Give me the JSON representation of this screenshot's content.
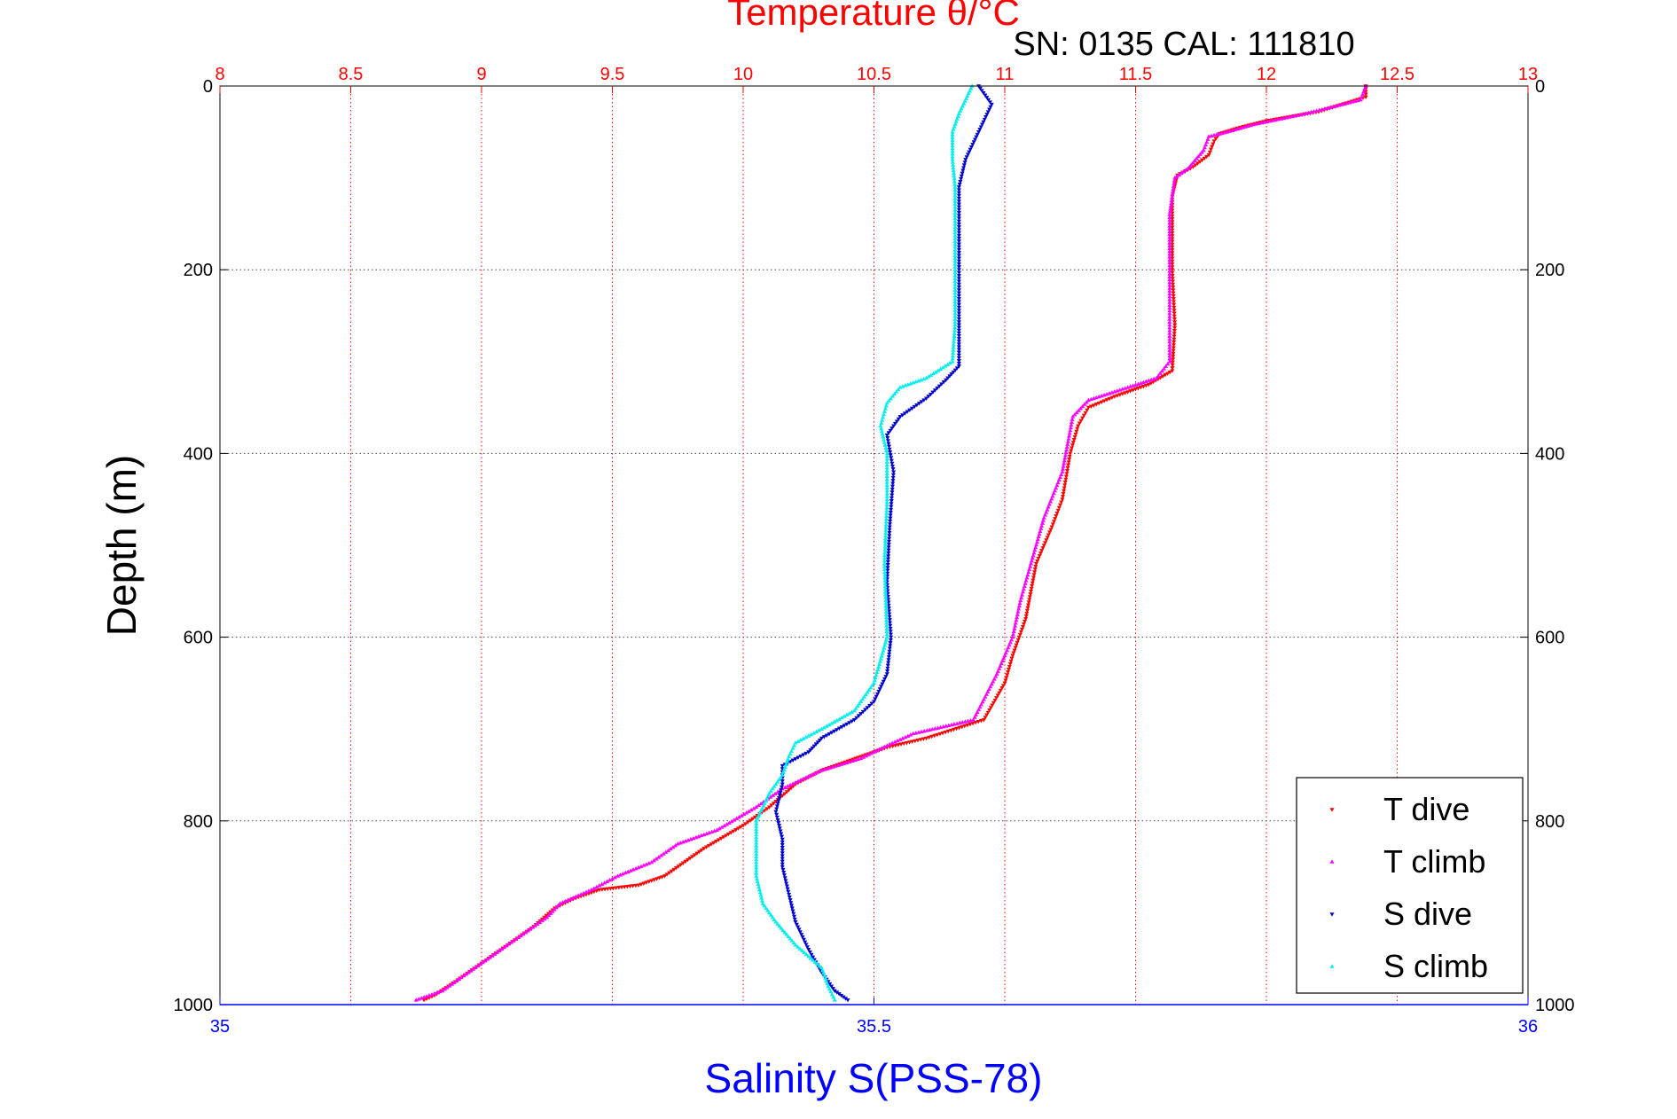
{
  "chart_data": {
    "type": "scatter",
    "title": "Temperature θ/°C",
    "subtitle": "SN: 0135  CAL: 111810",
    "ylabel": "Depth (m)",
    "xlabel_bottom": "Salinity S(PSS-78)",
    "y_axis": {
      "reversed": true,
      "range": [
        0,
        1000
      ],
      "ticks": [
        "0",
        "200",
        "400",
        "600",
        "800",
        "1000"
      ]
    },
    "top_axis": {
      "quantity": "temperature",
      "range": [
        8,
        13
      ],
      "ticks": [
        "8",
        "8.5",
        "9",
        "9.5",
        "10",
        "10.5",
        "11",
        "11.5",
        "12",
        "12.5",
        "13"
      ]
    },
    "bottom_axis": {
      "quantity": "salinity",
      "range": [
        35,
        36
      ],
      "ticks": [
        "35",
        "35.5",
        "36"
      ]
    },
    "grid": true,
    "legend_position": "bottom-right",
    "colors": {
      "temperature_axis": "#ff0000",
      "salinity_axis": "#0000ff",
      "t_dive": "#ff0000",
      "t_climb": "#ff00ff",
      "s_dive": "#0000cd",
      "s_climb": "#00eeee"
    },
    "series": [
      {
        "name": "T dive",
        "axis": "top",
        "color": "#ff0000",
        "points": [
          [
            12.38,
            0
          ],
          [
            12.38,
            12
          ],
          [
            12.2,
            28
          ],
          [
            12.0,
            38
          ],
          [
            11.9,
            45
          ],
          [
            11.82,
            52
          ],
          [
            11.8,
            60
          ],
          [
            11.78,
            75
          ],
          [
            11.72,
            88
          ],
          [
            11.66,
            97
          ],
          [
            11.64,
            120
          ],
          [
            11.64,
            200
          ],
          [
            11.65,
            260
          ],
          [
            11.64,
            310
          ],
          [
            11.55,
            325
          ],
          [
            11.42,
            338
          ],
          [
            11.32,
            350
          ],
          [
            11.28,
            370
          ],
          [
            11.25,
            400
          ],
          [
            11.22,
            450
          ],
          [
            11.18,
            480
          ],
          [
            11.12,
            520
          ],
          [
            11.08,
            580
          ],
          [
            11.03,
            620
          ],
          [
            11.0,
            650
          ],
          [
            10.92,
            690
          ],
          [
            10.7,
            710
          ],
          [
            10.55,
            720
          ],
          [
            10.4,
            735
          ],
          [
            10.3,
            745
          ],
          [
            10.2,
            760
          ],
          [
            10.1,
            785
          ],
          [
            10.0,
            805
          ],
          [
            9.85,
            830
          ],
          [
            9.7,
            860
          ],
          [
            9.6,
            870
          ],
          [
            9.45,
            875
          ],
          [
            9.35,
            885
          ],
          [
            9.28,
            895
          ],
          [
            9.2,
            915
          ],
          [
            9.1,
            935
          ],
          [
            9.0,
            955
          ],
          [
            8.9,
            975
          ],
          [
            8.82,
            990
          ],
          [
            8.78,
            995
          ]
        ]
      },
      {
        "name": "T climb",
        "axis": "top",
        "color": "#ff00ff",
        "points": [
          [
            12.38,
            0
          ],
          [
            12.36,
            15
          ],
          [
            12.15,
            30
          ],
          [
            11.95,
            42
          ],
          [
            11.85,
            50
          ],
          [
            11.78,
            55
          ],
          [
            11.76,
            70
          ],
          [
            11.7,
            90
          ],
          [
            11.65,
            100
          ],
          [
            11.63,
            140
          ],
          [
            11.63,
            220
          ],
          [
            11.63,
            300
          ],
          [
            11.58,
            318
          ],
          [
            11.45,
            330
          ],
          [
            11.32,
            342
          ],
          [
            11.26,
            360
          ],
          [
            11.24,
            390
          ],
          [
            11.22,
            420
          ],
          [
            11.15,
            470
          ],
          [
            11.1,
            520
          ],
          [
            11.06,
            560
          ],
          [
            11.03,
            600
          ],
          [
            10.97,
            640
          ],
          [
            10.88,
            690
          ],
          [
            10.65,
            705
          ],
          [
            10.55,
            718
          ],
          [
            10.45,
            732
          ],
          [
            10.3,
            745
          ],
          [
            10.15,
            765
          ],
          [
            10.05,
            785
          ],
          [
            9.9,
            810
          ],
          [
            9.75,
            825
          ],
          [
            9.65,
            845
          ],
          [
            9.52,
            860
          ],
          [
            9.42,
            875
          ],
          [
            9.3,
            890
          ],
          [
            9.25,
            905
          ],
          [
            9.15,
            925
          ],
          [
            9.05,
            945
          ],
          [
            8.95,
            965
          ],
          [
            8.85,
            985
          ],
          [
            8.75,
            995
          ]
        ]
      },
      {
        "name": "S dive",
        "axis": "bottom",
        "color": "#0000cd",
        "points": [
          [
            35.58,
            0
          ],
          [
            35.59,
            20
          ],
          [
            35.58,
            50
          ],
          [
            35.57,
            80
          ],
          [
            35.565,
            110
          ],
          [
            35.565,
            200
          ],
          [
            35.565,
            260
          ],
          [
            35.565,
            305
          ],
          [
            35.555,
            320
          ],
          [
            35.54,
            340
          ],
          [
            35.52,
            360
          ],
          [
            35.51,
            380
          ],
          [
            35.515,
            420
          ],
          [
            35.512,
            480
          ],
          [
            35.51,
            540
          ],
          [
            35.513,
            600
          ],
          [
            35.51,
            640
          ],
          [
            35.5,
            670
          ],
          [
            35.485,
            690
          ],
          [
            35.46,
            710
          ],
          [
            35.45,
            725
          ],
          [
            35.43,
            740
          ],
          [
            35.43,
            760
          ],
          [
            35.425,
            790
          ],
          [
            35.43,
            820
          ],
          [
            35.43,
            850
          ],
          [
            35.435,
            880
          ],
          [
            35.44,
            910
          ],
          [
            35.45,
            940
          ],
          [
            35.46,
            965
          ],
          [
            35.47,
            985
          ],
          [
            35.48,
            995
          ]
        ]
      },
      {
        "name": "S climb",
        "axis": "bottom",
        "color": "#00eeee",
        "points": [
          [
            35.575,
            0
          ],
          [
            35.565,
            30
          ],
          [
            35.56,
            50
          ],
          [
            35.56,
            80
          ],
          [
            35.562,
            110
          ],
          [
            35.562,
            200
          ],
          [
            35.562,
            260
          ],
          [
            35.56,
            300
          ],
          [
            35.54,
            318
          ],
          [
            35.52,
            328
          ],
          [
            35.51,
            345
          ],
          [
            35.505,
            370
          ],
          [
            35.51,
            400
          ],
          [
            35.51,
            450
          ],
          [
            35.508,
            520
          ],
          [
            35.51,
            600
          ],
          [
            35.5,
            650
          ],
          [
            35.485,
            680
          ],
          [
            35.46,
            700
          ],
          [
            35.44,
            715
          ],
          [
            35.435,
            730
          ],
          [
            35.43,
            750
          ],
          [
            35.42,
            770
          ],
          [
            35.41,
            800
          ],
          [
            35.41,
            830
          ],
          [
            35.41,
            860
          ],
          [
            35.415,
            890
          ],
          [
            35.425,
            910
          ],
          [
            35.44,
            935
          ],
          [
            35.46,
            960
          ],
          [
            35.465,
            980
          ],
          [
            35.47,
            995
          ]
        ]
      }
    ]
  }
}
